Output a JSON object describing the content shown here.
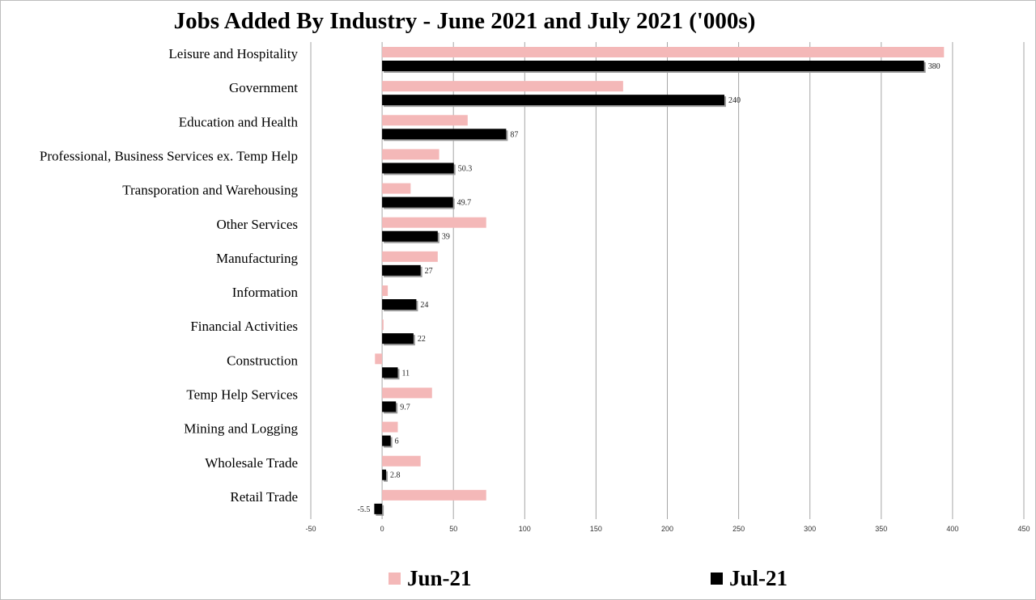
{
  "chart_data": {
    "type": "bar",
    "orientation": "horizontal",
    "title": "Jobs Added By Industry - June 2021 and July 2021 ('000s)",
    "categories": [
      "Leisure and Hospitality",
      "Government",
      "Education and Health",
      "Professional, Business Services ex. Temp Help",
      "Transporation and Warehousing",
      "Other Services",
      "Manufacturing",
      "Information",
      "Financial Activities",
      "Construction",
      "Temp Help Services",
      "Mining and Logging",
      "Wholesale Trade",
      "Retail Trade"
    ],
    "series": [
      {
        "name": "Jun-21",
        "color": "#f4b8b8",
        "values": [
          394,
          169,
          60,
          40,
          20,
          73,
          39,
          4,
          1,
          -5,
          35,
          11,
          27,
          73
        ]
      },
      {
        "name": "Jul-21",
        "color": "#000000",
        "values": [
          380,
          240,
          87,
          50.3,
          49.7,
          39,
          27,
          24,
          22,
          11,
          9.7,
          6,
          2.8,
          -5.5
        ],
        "labels": [
          "380",
          "240",
          "87",
          "50.3",
          "49.7",
          "39",
          "27",
          "24",
          "22",
          "11",
          "9.7",
          "6",
          "2.8",
          "-5.5"
        ]
      }
    ],
    "xlim": [
      -50,
      450
    ],
    "xticks": [
      "-50",
      "0",
      "50",
      "100",
      "150",
      "200",
      "250",
      "300",
      "350",
      "400",
      "450"
    ],
    "grid": true,
    "legend": "bottom"
  }
}
